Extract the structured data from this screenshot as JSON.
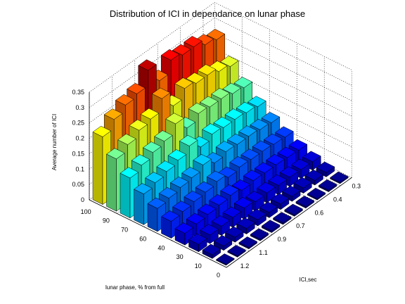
{
  "chart_data": {
    "type": "bar3d",
    "title": "Distribution of ICI in dependance on lunar phase",
    "xlabel": "lunar phase, % from full",
    "ylabel": "ICI,sec",
    "zlabel": "Average number of ICI",
    "x_ticks": [
      "100",
      "90",
      "70",
      "60",
      "40",
      "30",
      "10",
      "0"
    ],
    "y_ticks": [
      "0.3",
      "0.4",
      "0.6",
      "0.7",
      "0.9",
      "1.1",
      "1.2"
    ],
    "z_ticks": [
      "0",
      "0.05",
      "0.1",
      "0.15",
      "0.2",
      "0.25",
      "0.3",
      "0.35"
    ],
    "zlim": [
      0,
      0.35
    ],
    "colormap": "jet",
    "grid": true,
    "rows": [
      {
        "ici": "1.2",
        "values": [
          0.003,
          0.004,
          0.005,
          0.005,
          0.006,
          0.005,
          0.005,
          0.005,
          0.004,
          0.005,
          0.004
        ]
      },
      {
        "ici": "1.1",
        "values": [
          0.012,
          0.014,
          0.016,
          0.018,
          0.02,
          0.017,
          0.018,
          0.016,
          0.017,
          0.015,
          0.014
        ]
      },
      {
        "ici": "1.0",
        "values": [
          0.024,
          0.028,
          0.03,
          0.032,
          0.036,
          0.03,
          0.032,
          0.03,
          0.03,
          0.028,
          0.027
        ]
      },
      {
        "ici": "0.9",
        "values": [
          0.038,
          0.042,
          0.046,
          0.05,
          0.055,
          0.045,
          0.05,
          0.048,
          0.048,
          0.045,
          0.043
        ]
      },
      {
        "ici": "0.8",
        "values": [
          0.055,
          0.06,
          0.066,
          0.07,
          0.078,
          0.065,
          0.072,
          0.07,
          0.07,
          0.066,
          0.063
        ]
      },
      {
        "ici": "0.7",
        "values": [
          0.075,
          0.082,
          0.09,
          0.095,
          0.11,
          0.09,
          0.1,
          0.097,
          0.097,
          0.092,
          0.088
        ]
      },
      {
        "ici": "0.6",
        "values": [
          0.1,
          0.11,
          0.12,
          0.13,
          0.15,
          0.12,
          0.135,
          0.13,
          0.13,
          0.125,
          0.118
        ]
      },
      {
        "ici": "0.5",
        "values": [
          0.13,
          0.145,
          0.16,
          0.17,
          0.2,
          0.16,
          0.18,
          0.175,
          0.175,
          0.165,
          0.158
        ]
      },
      {
        "ici": "0.4",
        "values": [
          0.17,
          0.19,
          0.21,
          0.22,
          0.26,
          0.21,
          0.24,
          0.23,
          0.23,
          0.215,
          0.205
        ]
      },
      {
        "ici": "0.3",
        "values": [
          0.22,
          0.25,
          0.27,
          0.28,
          0.33,
          0.27,
          0.31,
          0.3,
          0.3,
          0.28,
          0.27
        ]
      }
    ]
  }
}
